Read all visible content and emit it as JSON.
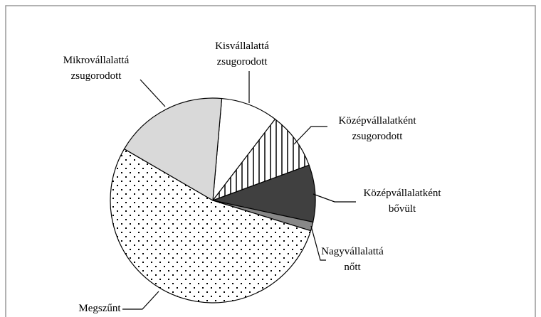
{
  "chart_data": {
    "type": "pie",
    "categories": [
      "Kisvállalattá zsugorodott",
      "Középvállalatként zsugorodott",
      "Középvállalatként bővült",
      "Nagyvállalattá nőtt",
      "Megszűnt",
      "Mikrovállalattá zsugorodott"
    ],
    "values": [
      9,
      9,
      9,
      1.4,
      53.6,
      18
    ],
    "colors": [
      "#ffffff",
      "vertical-stripes",
      "#404040",
      "#888888",
      "dots",
      "#d9d9d9"
    ]
  }
}
